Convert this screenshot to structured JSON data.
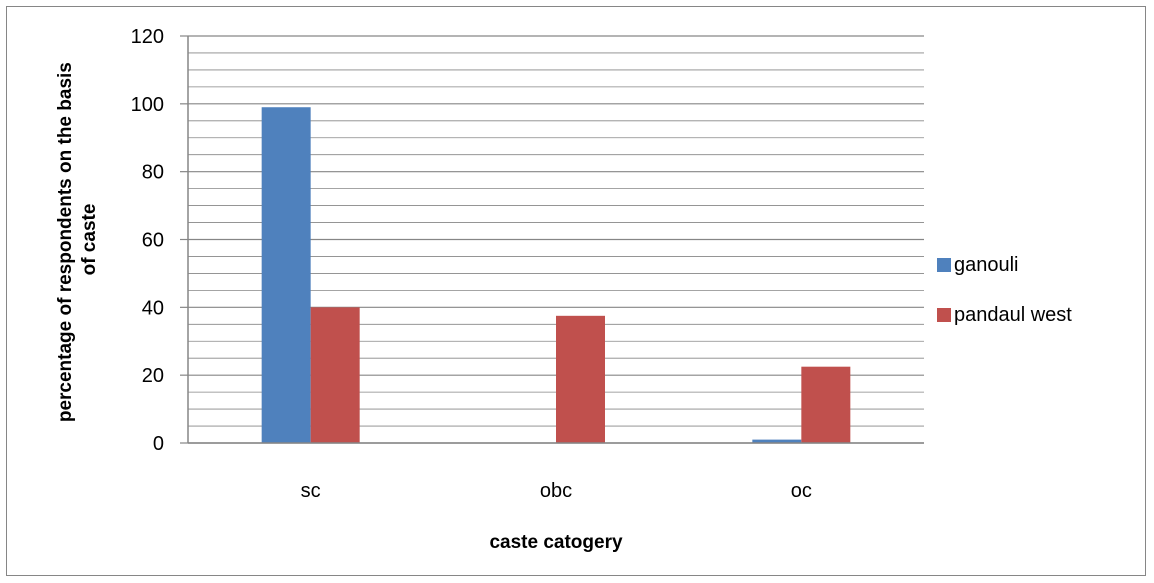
{
  "chart_data": {
    "type": "bar",
    "categories": [
      "sc",
      "obc",
      "oc"
    ],
    "series": [
      {
        "name": "ganouli",
        "values": [
          99,
          0,
          1
        ],
        "color": "#4f81bd"
      },
      {
        "name": "pandaul west",
        "values": [
          40,
          37.5,
          22.5
        ],
        "color": "#c0504d"
      }
    ],
    "title": "",
    "xlabel": "caste catogery",
    "ylabel_lines": [
      "percentage of respondents on the basis",
      "of caste"
    ],
    "ylim": [
      0,
      120
    ],
    "yticks": [
      0,
      20,
      40,
      60,
      80,
      100,
      120
    ],
    "minor_step": 5,
    "grid": true,
    "legend_position": "right"
  }
}
